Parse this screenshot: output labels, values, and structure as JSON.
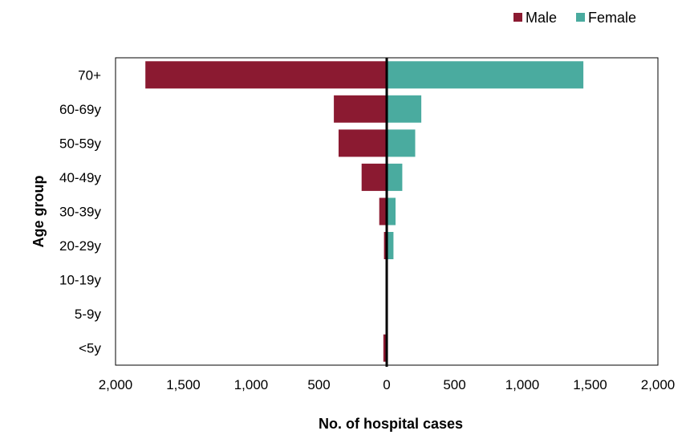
{
  "chart_data": {
    "type": "bar",
    "orientation": "horizontal",
    "layout": "population-pyramid",
    "title": "",
    "xlabel": "No. of hospital cases",
    "ylabel": "Age group",
    "categories": [
      "70+",
      "60-69y",
      "50-59y",
      "40-49y",
      "30-39y",
      "20-29y",
      "10-19y",
      "5-9y",
      "<5y"
    ],
    "series": [
      {
        "name": "Male",
        "color": "#8b1a31",
        "side": "left",
        "values": [
          1780,
          390,
          355,
          185,
          55,
          20,
          0,
          0,
          25
        ]
      },
      {
        "name": "Female",
        "color": "#4aab9f",
        "side": "right",
        "values": [
          1450,
          255,
          210,
          115,
          65,
          50,
          0,
          0,
          0
        ]
      }
    ],
    "xlim": [
      -2000,
      2000
    ],
    "x_ticks": [
      -2000,
      -1500,
      -1000,
      -500,
      0,
      500,
      1000,
      1500,
      2000
    ],
    "x_tick_labels": [
      "2,000",
      "1,500",
      "1,000",
      "500",
      "0",
      "500",
      "1,000",
      "1,500",
      "2,000"
    ],
    "legend_position": "top-right",
    "grid": false
  }
}
